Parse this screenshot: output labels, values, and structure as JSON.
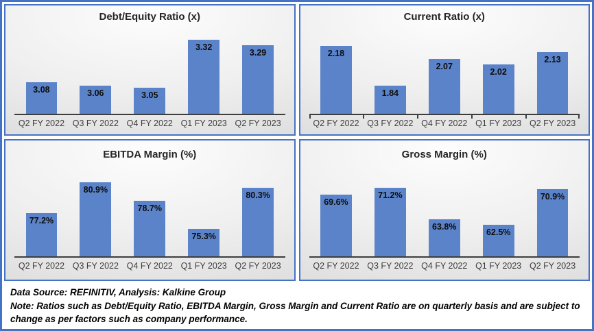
{
  "colors": {
    "frame_border": "#4472C4",
    "panel_border": "#4472C4",
    "bar_fill": "#5B83C9",
    "axis_line": "#3d3d3d",
    "title_text": "#262626",
    "category_text": "#3d3d3d",
    "data_label_text": "#0d0d0d"
  },
  "chart_data": [
    {
      "type": "bar",
      "title": "Debt/Equity Ratio (x)",
      "categories": [
        "Q2 FY 2022",
        "Q3 FY 2022",
        "Q4 FY 2022",
        "Q1 FY 2023",
        "Q2 FY 2023"
      ],
      "values": [
        3.08,
        3.06,
        3.05,
        3.32,
        3.29
      ],
      "labels": [
        "3.08",
        "3.06",
        "3.05",
        "3.32",
        "3.29"
      ],
      "ylim": [
        2.9,
        3.4
      ],
      "grid": false,
      "legend": false,
      "axis_ticks": false,
      "data_labels_position": "inside-top"
    },
    {
      "type": "bar",
      "title": "Current Ratio (x)",
      "categories": [
        "Q2 FY 2022",
        "Q3 FY 2022",
        "Q4 FY 2022",
        "Q1 FY 2023",
        "Q2 FY 2023"
      ],
      "values": [
        2.18,
        1.84,
        2.07,
        2.02,
        2.13
      ],
      "labels": [
        "2.18",
        "1.84",
        "2.07",
        "2.02",
        "2.13"
      ],
      "ylim": [
        1.6,
        2.35
      ],
      "grid": false,
      "legend": false,
      "axis_ticks": true,
      "data_labels_position": "inside-top"
    },
    {
      "type": "bar",
      "title": "EBITDA Margin (%)",
      "categories": [
        "Q2 FY 2022",
        "Q3 FY 2022",
        "Q4 FY 2022",
        "Q1 FY 2023",
        "Q2 FY 2023"
      ],
      "values": [
        77.2,
        80.9,
        78.7,
        75.3,
        80.3
      ],
      "labels": [
        "77.2%",
        "80.9%",
        "78.7%",
        "75.3%",
        "80.3%"
      ],
      "ylim": [
        72,
        83
      ],
      "grid": false,
      "legend": false,
      "axis_ticks": false,
      "data_labels_position": "inside-top"
    },
    {
      "type": "bar",
      "title": "Gross Margin (%)",
      "categories": [
        "Q2 FY 2022",
        "Q3 FY 2022",
        "Q4 FY 2022",
        "Q1 FY 2023",
        "Q2 FY 2023"
      ],
      "values": [
        69.6,
        71.2,
        63.8,
        62.5,
        70.9
      ],
      "labels": [
        "69.6%",
        "71.2%",
        "63.8%",
        "62.5%",
        "70.9%"
      ],
      "ylim": [
        55,
        76.5
      ],
      "grid": false,
      "legend": false,
      "axis_ticks": false,
      "data_labels_position": "inside-top"
    }
  ],
  "footer": {
    "source_line": "Data Source: REFINITIV, Analysis: Kalkine Group",
    "note_line": "Note: Ratios such as Debt/Equity Ratio, EBITDA Margin, Gross Margin and Current Ratio are on quarterly basis and are subject to change as per factors such as company performance."
  }
}
